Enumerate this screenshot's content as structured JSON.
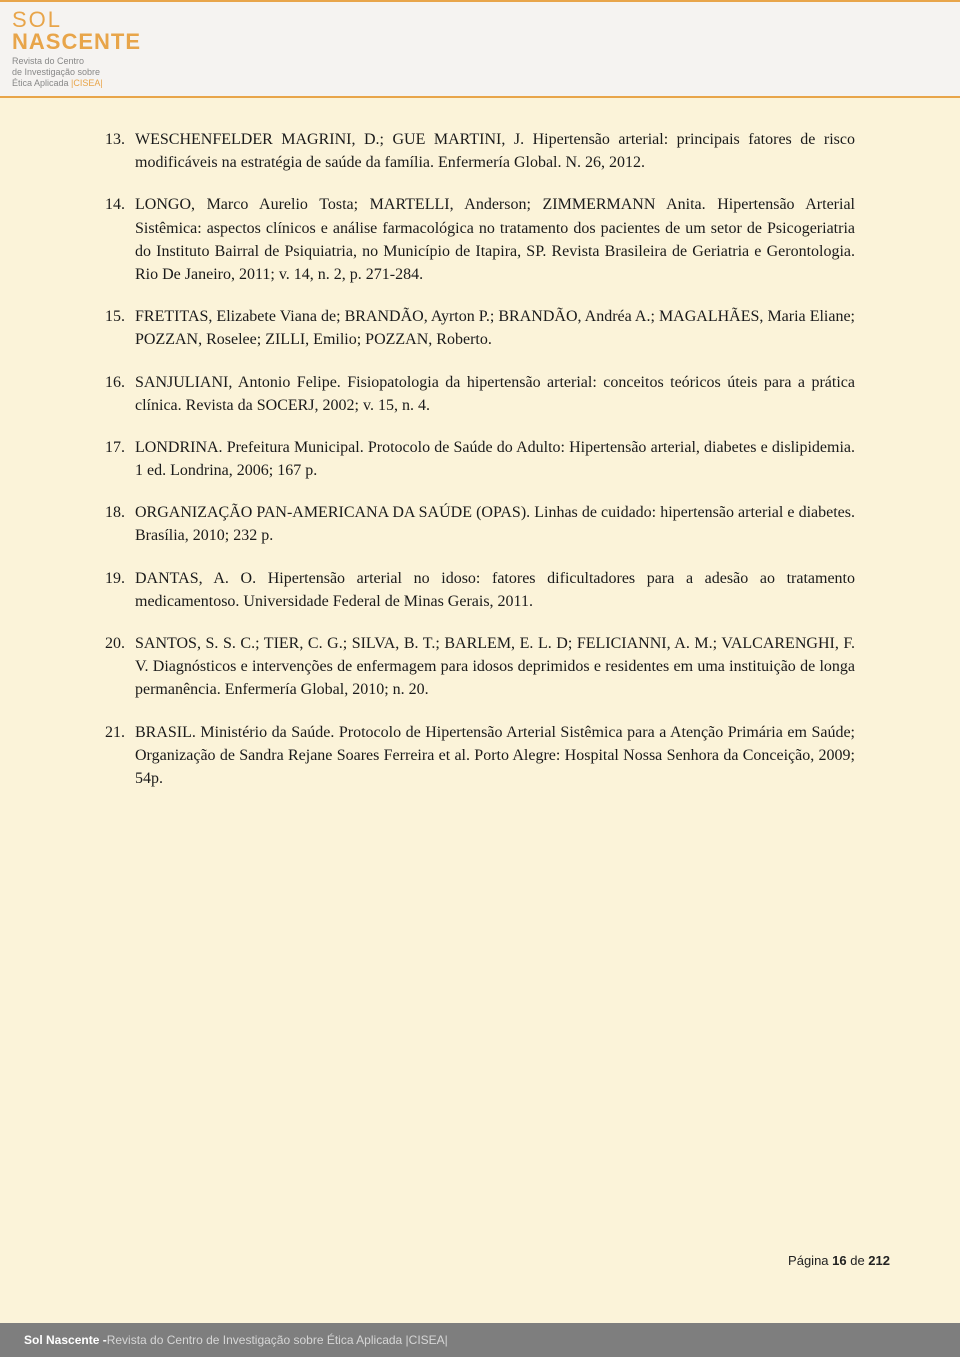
{
  "header": {
    "logo_line1": "SOL",
    "logo_line2": "NASCENTE",
    "logo_sub1": "Revista do Centro",
    "logo_sub2": "de Investigação sobre",
    "logo_sub3": "Ética Aplicada ",
    "logo_sub3_tag": "|CISEA|"
  },
  "references": [
    {
      "n": "13.",
      "text": "WESCHENFELDER MAGRINI, D.; GUE MARTINI, J. Hipertensão arterial: principais fatores de risco modificáveis na estratégia de saúde da família. Enfermería Global. N. 26, 2012."
    },
    {
      "n": "14.",
      "text": "LONGO, Marco Aurelio Tosta; MARTELLI, Anderson; ZIMMERMANN Anita. Hipertensão Arterial Sistêmica: aspectos clínicos e análise farmacológica no tratamento dos pacientes de um setor de Psicogeriatria do Instituto Bairral de Psiquiatria, no Município de Itapira, SP. Revista Brasileira de Geriatria e Gerontologia. Rio De Janeiro, 2011; v. 14, n. 2, p. 271-284."
    },
    {
      "n": "15.",
      "text": "FRETITAS, Elizabete Viana de; BRANDÃO, Ayrton P.; BRANDÃO, Andréa A.; MAGALHÃES, Maria Eliane; POZZAN, Roselee; ZILLI, Emilio; POZZAN, Roberto."
    },
    {
      "n": "16.",
      "text": "SANJULIANI, Antonio Felipe. Fisiopatologia da hipertensão arterial: conceitos teóricos úteis para a prática clínica. Revista da SOCERJ, 2002; v. 15, n. 4."
    },
    {
      "n": "17.",
      "text": "LONDRINA. Prefeitura Municipal. Protocolo de Saúde do Adulto: Hipertensão arterial, diabetes e dislipidemia. 1 ed. Londrina, 2006; 167 p."
    },
    {
      "n": "18.",
      "text": "ORGANIZAÇÃO PAN-AMERICANA DA SAÚDE (OPAS). Linhas de cuidado: hipertensão arterial e diabetes. Brasília, 2010; 232 p."
    },
    {
      "n": "19.",
      "text": "DANTAS, A. O. Hipertensão arterial no idoso: fatores dificultadores para a adesão ao tratamento medicamentoso. Universidade Federal de Minas Gerais, 2011."
    },
    {
      "n": "20.",
      "text": "SANTOS, S. S. C.; TIER, C. G.; SILVA, B. T.; BARLEM, E. L. D; FELICIANNI, A. M.; VALCARENGHI, F. V. Diagnósticos e intervenções de enfermagem para idosos deprimidos e residentes em uma instituição de longa permanência. Enfermería Global, 2010; n. 20."
    },
    {
      "n": "21.",
      "text": "BRASIL. Ministério da Saúde. Protocolo de Hipertensão Arterial Sistêmica para a Atenção Primária em Saúde; Organização de Sandra Rejane Soares Ferreira et al. Porto Alegre: Hospital Nossa Senhora da Conceição, 2009; 54p."
    }
  ],
  "pagenum": {
    "label_pre": "Página ",
    "current": "16",
    "sep": " de ",
    "total": "212"
  },
  "footer": {
    "strong": "Sol Nascente - ",
    "rest": "Revista do Centro de Investigação sobre Ética Aplicada |CISEA|"
  }
}
